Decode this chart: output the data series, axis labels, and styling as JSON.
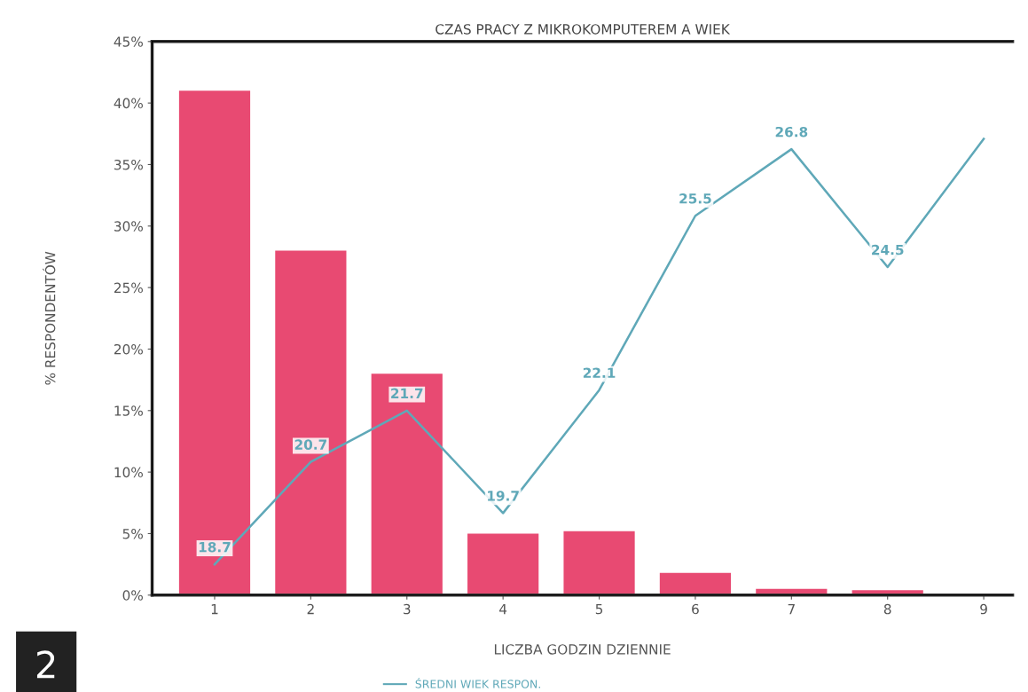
{
  "chart_data": {
    "type": "bar",
    "title": "CZAS PRACY Z MIKROKOMPUTEREM A WIEK",
    "xlabel": "LICZBA GODZIN DZIENNIE",
    "ylabel": "% RESPONDENTÓW",
    "categories": [
      "1",
      "2",
      "3",
      "4",
      "5",
      "6",
      "7",
      "8",
      "9"
    ],
    "ylim": [
      0,
      45
    ],
    "yticks": [
      {
        "value": 0,
        "label": "0%"
      },
      {
        "value": 5,
        "label": "5%"
      },
      {
        "value": 10,
        "label": "10%"
      },
      {
        "value": 15,
        "label": "15%"
      },
      {
        "value": 20,
        "label": "20%"
      },
      {
        "value": 25,
        "label": "25%"
      },
      {
        "value": 30,
        "label": "30%"
      },
      {
        "value": 35,
        "label": "35%"
      },
      {
        "value": 40,
        "label": "40%"
      },
      {
        "value": 45,
        "label": "45%"
      }
    ],
    "y2lim": [
      18.1,
      28.9
    ],
    "legend": "bottom",
    "grid": false,
    "series": [
      {
        "color": "#e84a72",
        "values": [
          41,
          28,
          18,
          5,
          5.2,
          1.8,
          0.5,
          0.4,
          0.1
        ]
      },
      {
        "type": "line",
        "axis": "y2",
        "name": "ŚREDNI WIEK RESPON.",
        "color": "#5fa8b8",
        "values": [
          18.7,
          20.7,
          21.7,
          19.7,
          22.1,
          25.5,
          26.8,
          24.5,
          27.0
        ],
        "value_labels": [
          "18.7",
          "20.7",
          "21.7",
          "19.7",
          "22.1",
          "25.5",
          "26.8",
          "24.5",
          null
        ]
      }
    ],
    "annotations": [
      "2"
    ]
  }
}
